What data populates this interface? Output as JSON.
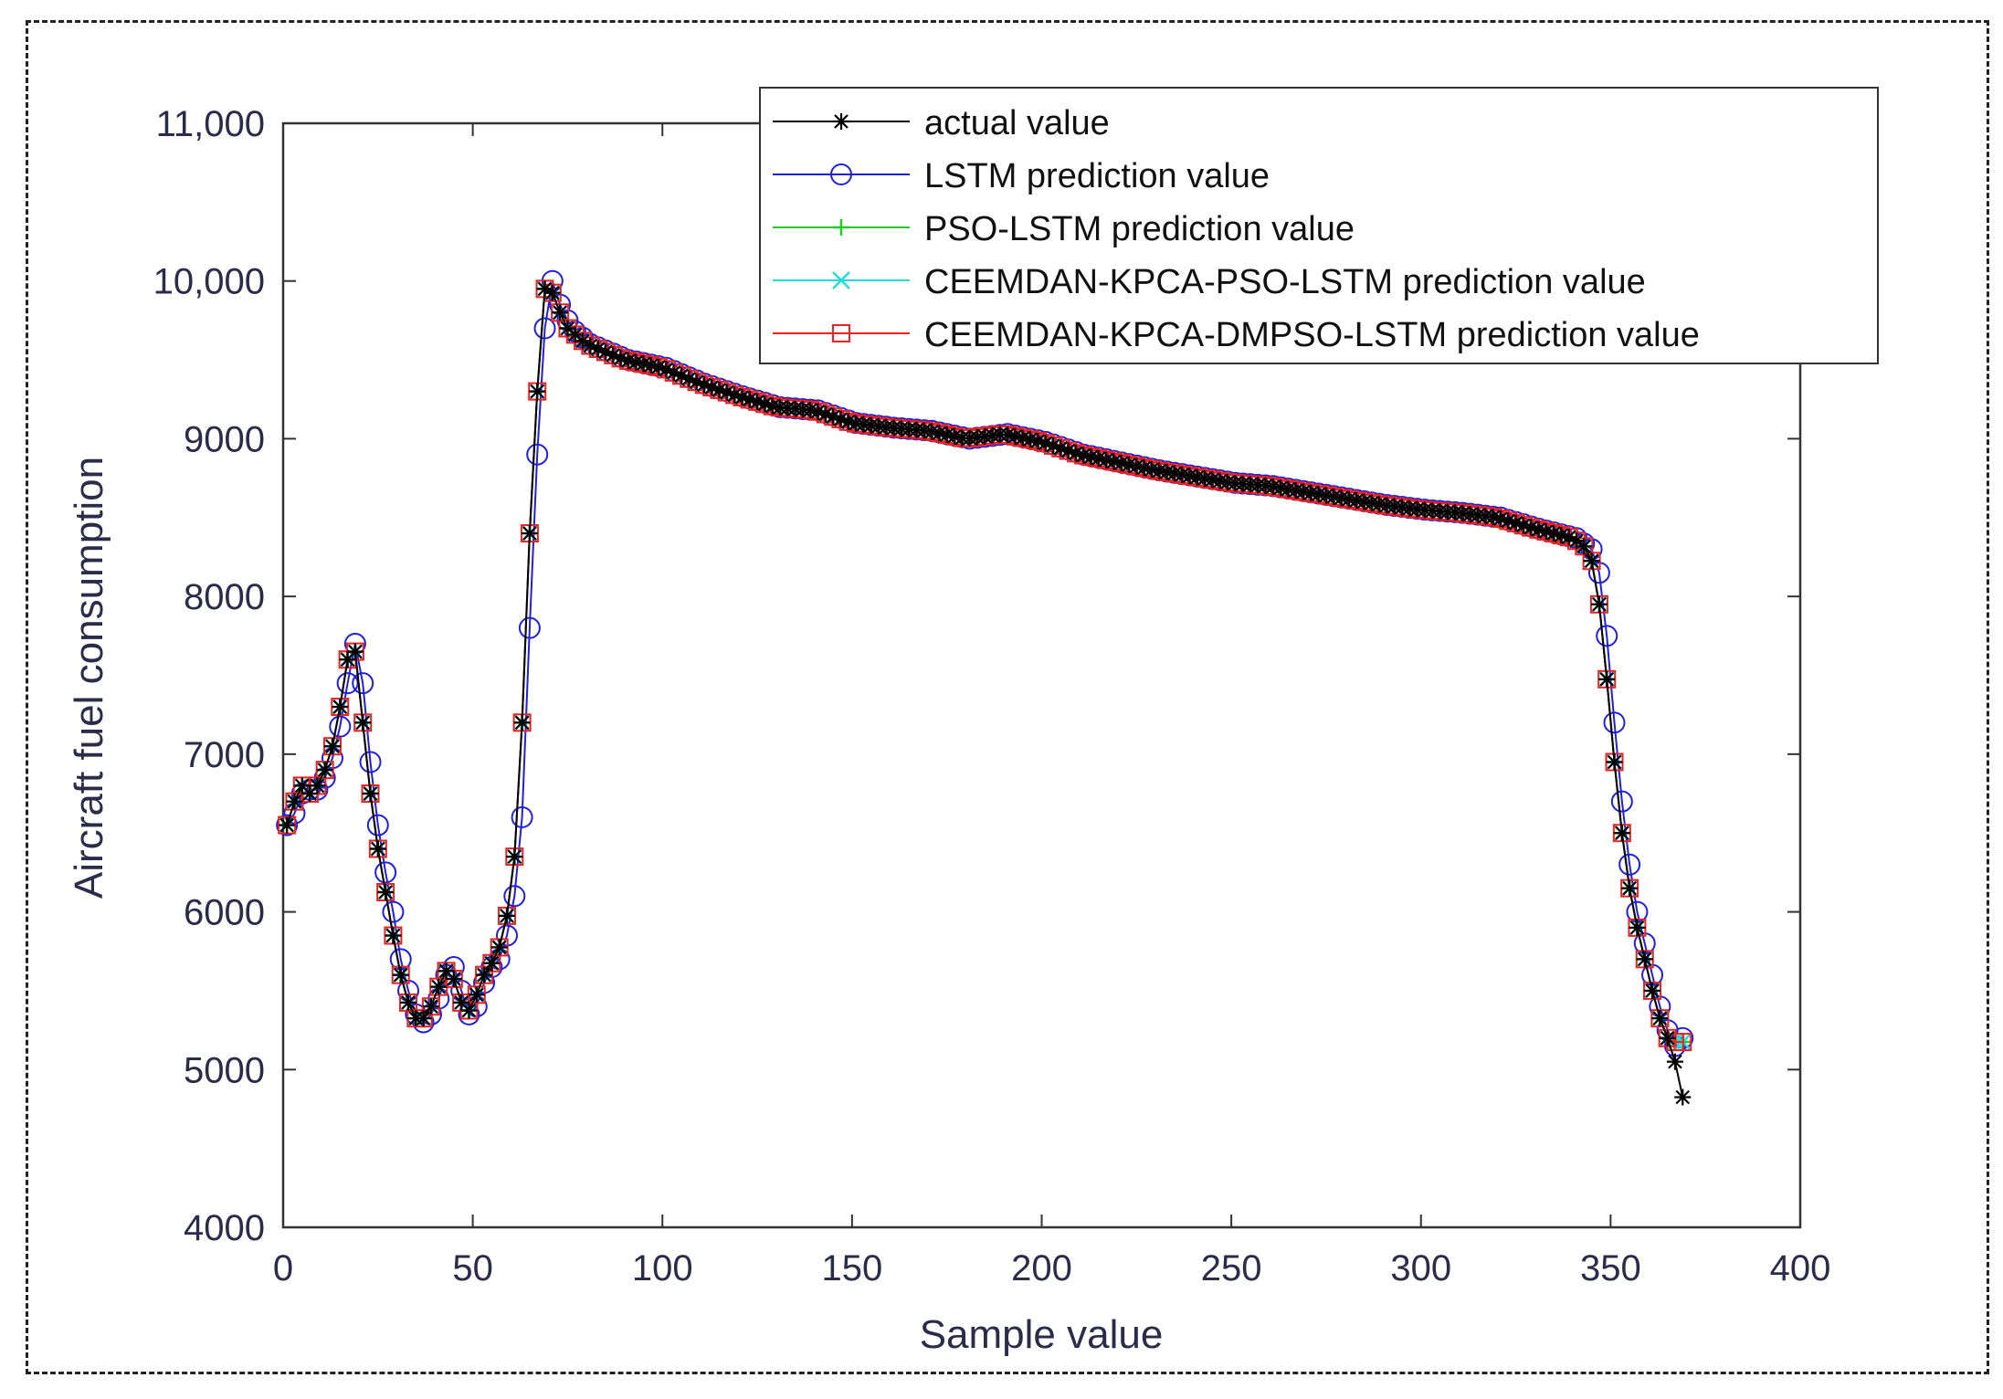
{
  "chart_data": {
    "type": "line",
    "title": "",
    "xlabel": "Sample value",
    "ylabel": "Aircraft fuel consumption",
    "xlim": [
      0,
      400
    ],
    "ylim": [
      4000,
      11000
    ],
    "xticks": [
      0,
      50,
      100,
      150,
      200,
      250,
      300,
      350,
      400
    ],
    "xtick_labels": [
      "0",
      "50",
      "100",
      "150",
      "200",
      "250",
      "300",
      "350",
      "400"
    ],
    "yticks": [
      4000,
      5000,
      6000,
      7000,
      8000,
      9000,
      10000,
      11000
    ],
    "ytick_labels": [
      "4000",
      "5000",
      "6000",
      "7000",
      "8000",
      "9000",
      "10,000",
      "11,000"
    ],
    "grid": false,
    "legend_position": "top-right",
    "series": [
      {
        "name": "actual value",
        "color": "#000000",
        "marker": "asterisk",
        "offset": 0
      },
      {
        "name": "LSTM prediction value",
        "color": "#1f1fe0",
        "marker": "circle",
        "offset": 1
      },
      {
        "name": "PSO-LSTM prediction value",
        "color": "#22cc22",
        "marker": "plus",
        "offset": 0
      },
      {
        "name": "CEEMDAN-KPCA-PSO-LSTM prediction value",
        "color": "#22dddd",
        "marker": "x",
        "offset": 0
      },
      {
        "name": "CEEMDAN-KPCA-DMPSO-LSTM prediction value",
        "color": "#ee2222",
        "marker": "square",
        "offset": 0
      }
    ],
    "profile": [
      [
        1,
        6550
      ],
      [
        3,
        6700
      ],
      [
        5,
        6800
      ],
      [
        7,
        6750
      ],
      [
        9,
        6800
      ],
      [
        11,
        6900
      ],
      [
        13,
        7050
      ],
      [
        15,
        7300
      ],
      [
        17,
        7600
      ],
      [
        18,
        7700
      ],
      [
        19,
        7650
      ],
      [
        20,
        7450
      ],
      [
        21,
        7200
      ],
      [
        22,
        6950
      ],
      [
        24,
        6550
      ],
      [
        26,
        6250
      ],
      [
        28,
        6000
      ],
      [
        30,
        5700
      ],
      [
        32,
        5500
      ],
      [
        34,
        5350
      ],
      [
        36,
        5300
      ],
      [
        38,
        5350
      ],
      [
        40,
        5450
      ],
      [
        42,
        5600
      ],
      [
        44,
        5650
      ],
      [
        46,
        5500
      ],
      [
        48,
        5350
      ],
      [
        50,
        5400
      ],
      [
        52,
        5550
      ],
      [
        54,
        5650
      ],
      [
        56,
        5700
      ],
      [
        58,
        5850
      ],
      [
        60,
        6100
      ],
      [
        62,
        6600
      ],
      [
        64,
        7800
      ],
      [
        65,
        8400
      ],
      [
        66,
        8900
      ],
      [
        67,
        9300
      ],
      [
        68,
        9700
      ],
      [
        69,
        9950
      ],
      [
        70,
        10000
      ],
      [
        72,
        9850
      ],
      [
        75,
        9700
      ],
      [
        80,
        9600
      ],
      [
        90,
        9500
      ],
      [
        100,
        9450
      ],
      [
        110,
        9350
      ],
      [
        120,
        9270
      ],
      [
        130,
        9200
      ],
      [
        140,
        9180
      ],
      [
        150,
        9100
      ],
      [
        160,
        9070
      ],
      [
        170,
        9050
      ],
      [
        180,
        9000
      ],
      [
        190,
        9030
      ],
      [
        200,
        8980
      ],
      [
        210,
        8900
      ],
      [
        220,
        8850
      ],
      [
        230,
        8800
      ],
      [
        240,
        8760
      ],
      [
        250,
        8720
      ],
      [
        260,
        8700
      ],
      [
        270,
        8660
      ],
      [
        280,
        8620
      ],
      [
        290,
        8580
      ],
      [
        300,
        8550
      ],
      [
        310,
        8530
      ],
      [
        320,
        8500
      ],
      [
        330,
        8430
      ],
      [
        340,
        8370
      ],
      [
        344,
        8300
      ],
      [
        346,
        8150
      ],
      [
        348,
        7750
      ],
      [
        350,
        7200
      ],
      [
        352,
        6700
      ],
      [
        354,
        6300
      ],
      [
        356,
        6000
      ],
      [
        358,
        5800
      ],
      [
        360,
        5600
      ],
      [
        362,
        5400
      ],
      [
        364,
        5250
      ],
      [
        366,
        5150
      ],
      [
        368,
        5200
      ],
      [
        370,
        5150
      ]
    ],
    "actual_tail": [
      [
        366,
        5150
      ],
      [
        368,
        4950
      ],
      [
        370,
        4700
      ]
    ]
  }
}
